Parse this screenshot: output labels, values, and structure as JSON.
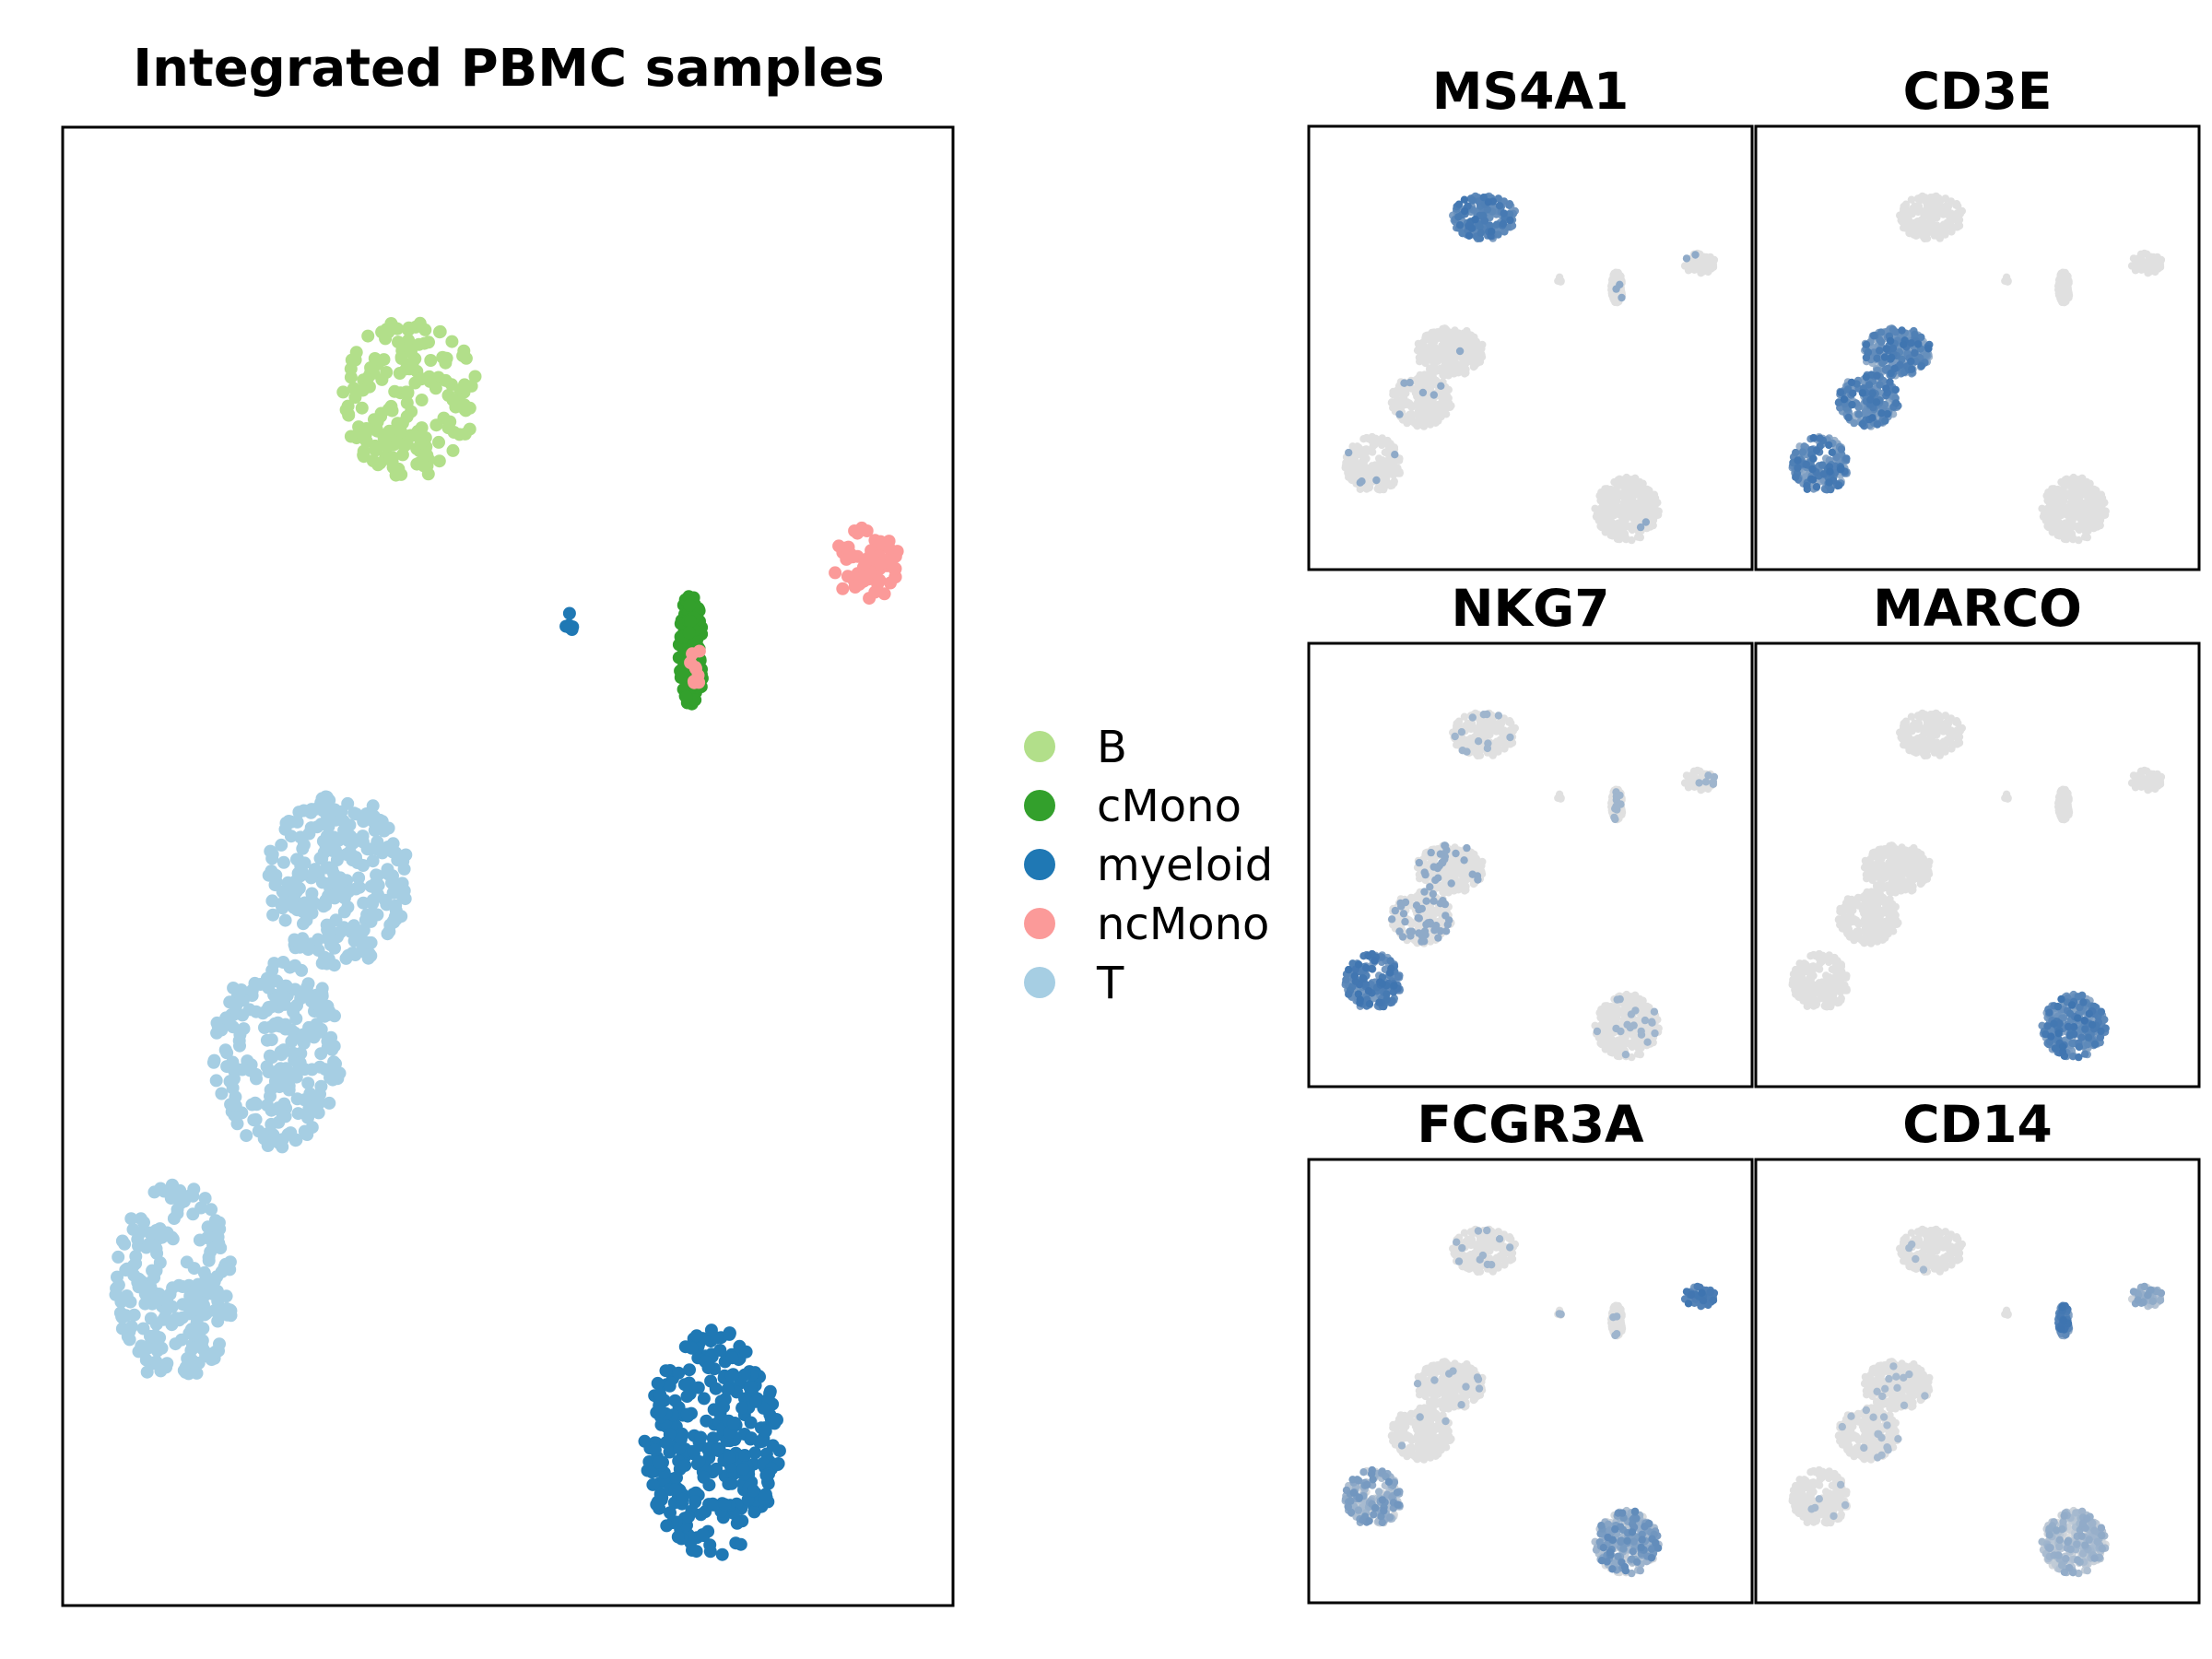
{
  "chart_data": [
    {
      "type": "scatter",
      "title": "Integrated PBMC samples",
      "xlabel": "",
      "ylabel": "",
      "xlim": [
        0,
        100
      ],
      "ylim": [
        0,
        100
      ],
      "grid": false,
      "axis_ticks": false,
      "legend": {
        "placement": "right",
        "entries": [
          {
            "label": "B",
            "color": "#b2df8a"
          },
          {
            "label": "cMono",
            "color": "#33a02c"
          },
          {
            "label": "myeloid",
            "color": "#1f78b4"
          },
          {
            "label": "ncMono",
            "color": "#fb9a99"
          },
          {
            "label": "T",
            "color": "#a6cee3"
          }
        ]
      },
      "clusters": [
        {
          "group": "B",
          "color": "#b2df8a",
          "cx": 38.5,
          "cy": 82.5,
          "rx": 8.0,
          "ry": 5.5,
          "approx_points": 180
        },
        {
          "group": "cMono",
          "color": "#33a02c",
          "cx": 71.5,
          "cy": 65.0,
          "rx": 1.5,
          "ry": 4.0,
          "approx_points": 110
        },
        {
          "group": "myeloid",
          "color": "#1f78b4",
          "cx": 74.0,
          "cy": 10.0,
          "rx": 8.0,
          "ry": 8.0,
          "approx_points": 320
        },
        {
          "group": "myeloid",
          "color": "#1f78b4",
          "cx": 57.0,
          "cy": 67.0,
          "rx": 0.8,
          "ry": 0.8,
          "approx_points": 6
        },
        {
          "group": "ncMono",
          "color": "#fb9a99",
          "cx": 92.0,
          "cy": 71.0,
          "rx": 4.0,
          "ry": 2.5,
          "approx_points": 70
        },
        {
          "group": "ncMono",
          "color": "#fb9a99",
          "cx": 72.0,
          "cy": 64.0,
          "rx": 0.8,
          "ry": 1.5,
          "approx_points": 10
        },
        {
          "group": "T",
          "color": "#a6cee3",
          "cx": 30.0,
          "cy": 49.0,
          "rx": 8.5,
          "ry": 6.0,
          "approx_points": 260
        },
        {
          "group": "T",
          "color": "#a6cee3",
          "cx": 23.0,
          "cy": 37.0,
          "rx": 7.5,
          "ry": 6.5,
          "approx_points": 220
        },
        {
          "group": "T",
          "color": "#a6cee3",
          "cx": 11.0,
          "cy": 21.0,
          "rx": 7.0,
          "ry": 7.0,
          "approx_points": 220
        }
      ]
    },
    {
      "type": "scatter",
      "title": "MS4A1",
      "xlabel": "",
      "ylabel": "",
      "expression_colormap": [
        "#e0e0e0",
        "#3e74b0"
      ],
      "high_expression_clusters": [
        "B"
      ]
    },
    {
      "type": "scatter",
      "title": "CD3E",
      "xlabel": "",
      "ylabel": "",
      "expression_colormap": [
        "#e0e0e0",
        "#3e74b0"
      ],
      "high_expression_clusters": [
        "T"
      ]
    },
    {
      "type": "scatter",
      "title": "NKG7",
      "xlabel": "",
      "ylabel": "",
      "expression_colormap": [
        "#e0e0e0",
        "#3e74b0"
      ],
      "high_expression_clusters": [
        "T (lower subcluster)"
      ]
    },
    {
      "type": "scatter",
      "title": "MARCO",
      "xlabel": "",
      "ylabel": "",
      "expression_colormap": [
        "#e0e0e0",
        "#3e74b0"
      ],
      "high_expression_clusters": [
        "myeloid"
      ]
    },
    {
      "type": "scatter",
      "title": "FCGR3A",
      "xlabel": "",
      "ylabel": "",
      "expression_colormap": [
        "#e0e0e0",
        "#3e74b0"
      ],
      "high_expression_clusters": [
        "ncMono",
        "myeloid (moderate)",
        "T (lower subcluster, moderate)"
      ]
    },
    {
      "type": "scatter",
      "title": "CD14",
      "xlabel": "",
      "ylabel": "",
      "expression_colormap": [
        "#e0e0e0",
        "#3e74b0"
      ],
      "high_expression_clusters": [
        "cMono",
        "ncMono (moderate)",
        "myeloid (low)"
      ]
    }
  ]
}
